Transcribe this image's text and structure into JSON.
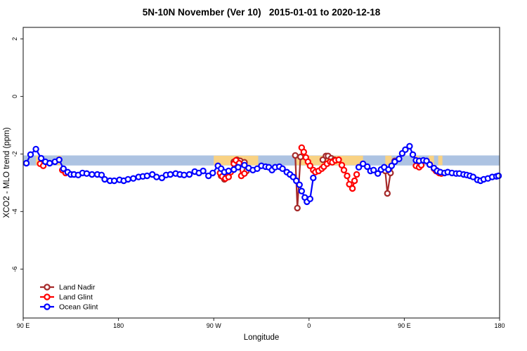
{
  "figure": {
    "title": "5N-10N November (Ver 10)   2015-01-01 to 2020-12-18",
    "xlabel": "Longitude",
    "ylabel": "XCO2 - MLO trend (ppm)"
  },
  "chart_data": {
    "type": "line",
    "title": "5N-10N November (Ver 10)   2015-01-01 to 2020-12-18",
    "xlabel": "Longitude",
    "ylabel": "XCO2 - MLO trend (ppm)",
    "xlim": [
      90,
      540
    ],
    "ylim": [
      -7.7,
      2.4
    ],
    "x_ticks": [
      {
        "value": 90,
        "label": "90 E"
      },
      {
        "value": 180,
        "label": "180"
      },
      {
        "value": 270,
        "label": "90 W"
      },
      {
        "value": 360,
        "label": "0"
      },
      {
        "value": 450,
        "label": "90 E"
      },
      {
        "value": 540,
        "label": "180"
      }
    ],
    "y_ticks": [
      {
        "value": 2,
        "label": "2"
      },
      {
        "value": 0,
        "label": "0"
      },
      {
        "value": -2,
        "label": "-2"
      },
      {
        "value": -4,
        "label": "-4"
      },
      {
        "value": -6,
        "label": "-6"
      }
    ],
    "grid": false,
    "legend_position": "bottom-left",
    "marker": {
      "shape": "open-circle",
      "radius": 3.6,
      "fill": "#ffffff",
      "stroke_width": 2.2
    },
    "line_width": 2.2,
    "bands": {
      "reference": {
        "color": "#ADC3E2",
        "x_range": [
          90,
          540
        ],
        "y_range": [
          -2.05,
          -2.4
        ]
      },
      "highlight": {
        "color": "#F9D283",
        "y_range": [
          -2.06,
          -2.39
        ],
        "x_ranges": [
          [
            102,
            106
          ],
          [
            122,
            126
          ],
          [
            270,
            312
          ],
          [
            348,
            411
          ],
          [
            432,
            438
          ],
          [
            460,
            464
          ],
          [
            473,
            478
          ],
          [
            482,
            486
          ]
        ]
      }
    },
    "series": [
      {
        "name": "Land Nadir",
        "color": "#A52A2A",
        "segments": [
          {
            "x": [
              277,
              280
            ],
            "y": [
              -2.76,
              -2.88
            ]
          },
          {
            "x": [
              289,
              292,
              295,
              299,
              301
            ],
            "y": [
              -2.27,
              -2.2,
              -2.24,
              -2.29,
              -2.59
            ]
          },
          {
            "x": [
              347,
              349,
              352
            ],
            "y": [
              -2.05,
              -3.88,
              -2.1
            ]
          },
          {
            "x": [
              373,
              376,
              378,
              381,
              384
            ],
            "y": [
              -2.2,
              -2.07,
              -2.07,
              -2.15,
              -2.2
            ]
          },
          {
            "x": [
              432,
              434,
              437,
              441
            ],
            "y": [
              -2.59,
              -3.37,
              -2.66,
              -2.24
            ]
          },
          {
            "x": [
              463
            ],
            "y": [
              -2.39
            ]
          },
          {
            "x": [
              480,
              482
            ],
            "y": [
              -2.56,
              -2.63
            ]
          }
        ]
      },
      {
        "name": "Land Glint",
        "color": "#FF0000",
        "segments": [
          {
            "x": [
              106,
              109
            ],
            "y": [
              -2.34,
              -2.41
            ]
          },
          {
            "x": [
              127,
              130
            ],
            "y": [
              -2.56,
              -2.66
            ]
          },
          {
            "x": [
              276,
              278,
              281,
              284,
              286,
              289,
              291,
              294,
              296,
              299
            ],
            "y": [
              -2.66,
              -2.78,
              -2.85,
              -2.8,
              -2.63,
              -2.34,
              -2.22,
              -2.32,
              -2.76,
              -2.68
            ]
          },
          {
            "x": [
              353,
              355,
              357,
              359,
              361,
              364,
              366,
              369,
              372,
              374,
              377,
              380,
              382,
              385,
              388,
              391,
              393,
              396,
              398,
              401,
              403,
              405
            ],
            "y": [
              -1.78,
              -1.93,
              -2.12,
              -2.27,
              -2.41,
              -2.56,
              -2.63,
              -2.59,
              -2.51,
              -2.44,
              -2.34,
              -2.27,
              -2.29,
              -2.22,
              -2.2,
              -2.39,
              -2.56,
              -2.76,
              -3.05,
              -3.2,
              -2.93,
              -2.71
            ]
          },
          {
            "x": [
              461,
              464,
              466
            ],
            "y": [
              -2.41,
              -2.46,
              -2.39
            ]
          },
          {
            "x": [
              478,
              480,
              483,
              485
            ],
            "y": [
              -2.51,
              -2.59,
              -2.66,
              -2.68
            ]
          }
        ]
      },
      {
        "name": "Ocean Glint",
        "color": "#0000FF",
        "segments": [
          {
            "x": [
              93,
              97,
              102,
              107,
              111,
              115,
              120,
              124,
              128,
              132,
              135,
              138,
              142,
              146,
              150,
              155,
              160,
              164,
              167,
              172,
              176,
              181,
              185,
              189,
              194,
              199,
              203,
              207,
              212,
              216,
              221,
              225,
              229,
              234,
              238,
              242,
              247,
              252,
              256,
              260,
              265,
              269,
              274,
              277,
              280,
              284,
              289,
              293,
              299,
              303,
              307,
              311,
              315,
              319,
              322,
              325,
              328,
              332,
              335,
              339,
              342,
              345,
              348,
              351,
              353,
              356,
              358,
              361,
              364
            ],
            "y": [
              -2.32,
              -2.02,
              -1.83,
              -2.15,
              -2.27,
              -2.32,
              -2.27,
              -2.2,
              -2.51,
              -2.63,
              -2.71,
              -2.71,
              -2.73,
              -2.66,
              -2.68,
              -2.71,
              -2.71,
              -2.73,
              -2.88,
              -2.93,
              -2.93,
              -2.9,
              -2.93,
              -2.88,
              -2.85,
              -2.8,
              -2.78,
              -2.76,
              -2.71,
              -2.8,
              -2.83,
              -2.73,
              -2.71,
              -2.68,
              -2.71,
              -2.73,
              -2.71,
              -2.61,
              -2.66,
              -2.59,
              -2.76,
              -2.66,
              -2.41,
              -2.51,
              -2.63,
              -2.59,
              -2.54,
              -2.46,
              -2.39,
              -2.49,
              -2.56,
              -2.51,
              -2.41,
              -2.44,
              -2.46,
              -2.56,
              -2.46,
              -2.44,
              -2.51,
              -2.63,
              -2.71,
              -2.8,
              -2.93,
              -3.07,
              -3.29,
              -3.51,
              -3.66,
              -3.56,
              -2.83
            ]
          },
          {
            "x": [
              407,
              411,
              415,
              418,
              421,
              425,
              428,
              431,
              435,
              438,
              441,
              445,
              448,
              451,
              455,
              458,
              461,
              464,
              468,
              471,
              474,
              478,
              481,
              484,
              488,
              491,
              495,
              499,
              502,
              506,
              509,
              512,
              515,
              519,
              522,
              525,
              529,
              533,
              537,
              539
            ],
            "y": [
              -2.46,
              -2.34,
              -2.44,
              -2.59,
              -2.56,
              -2.68,
              -2.54,
              -2.46,
              -2.54,
              -2.41,
              -2.27,
              -2.17,
              -1.98,
              -1.85,
              -1.73,
              -2.02,
              -2.22,
              -2.24,
              -2.22,
              -2.24,
              -2.37,
              -2.49,
              -2.59,
              -2.63,
              -2.66,
              -2.63,
              -2.66,
              -2.68,
              -2.68,
              -2.71,
              -2.73,
              -2.76,
              -2.8,
              -2.9,
              -2.93,
              -2.88,
              -2.85,
              -2.8,
              -2.78,
              -2.76
            ]
          }
        ]
      }
    ]
  }
}
